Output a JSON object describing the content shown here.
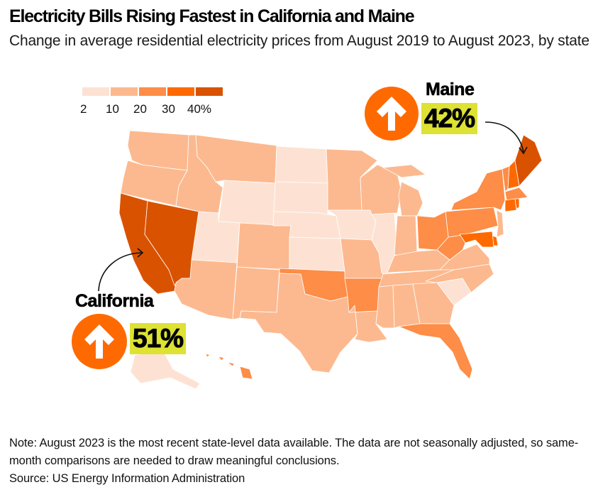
{
  "header": {
    "title": "Electricity Bills Rising Fastest in California and Maine",
    "subtitle": "Change in average residential electricity prices from August 2019 to August 2023, by state"
  },
  "legend": {
    "labels": [
      "2",
      "10",
      "20",
      "30",
      "40%"
    ],
    "colors": [
      "#fde2d3",
      "#fcb98f",
      "#fd8d47",
      "#fe6a00",
      "#d95200"
    ]
  },
  "callouts": {
    "maine": {
      "name": "Maine",
      "value": "42%",
      "direction": "up-arrow-icon"
    },
    "california": {
      "name": "California",
      "value": "51%",
      "direction": "up-arrow-icon"
    }
  },
  "colors": {
    "accent_circle": "#fe6a00",
    "highlight_box": "#dde233"
  },
  "chart_data": {
    "type": "choropleth",
    "title": "Electricity Bills Rising Fastest in California and Maine",
    "subtitle": "Change in average residential electricity prices from August 2019 to August 2023, by state",
    "legend": {
      "bins": [
        {
          "range": [
            2,
            10
          ],
          "label": "2–10%",
          "color": "#fde2d3"
        },
        {
          "range": [
            10,
            20
          ],
          "label": "10–20%",
          "color": "#fcb98f"
        },
        {
          "range": [
            20,
            30
          ],
          "label": "20–30%",
          "color": "#fd8d47"
        },
        {
          "range": [
            30,
            40
          ],
          "label": "30–40%",
          "color": "#fe6a00"
        },
        {
          "range": [
            40,
            null
          ],
          "label": "40%+",
          "color": "#d95200"
        }
      ],
      "tick_labels": [
        "2",
        "10",
        "20",
        "30",
        "40%"
      ],
      "placement": "top-left"
    },
    "annotations": [
      {
        "state": "ME",
        "label": "Maine",
        "value_pct": 42
      },
      {
        "state": "CA",
        "label": "California",
        "value_pct": 51
      }
    ],
    "states_bin": {
      "WA": 1,
      "OR": 1,
      "CA": 4,
      "NV": 4,
      "ID": 1,
      "MT": 1,
      "WY": 0,
      "UT": 0,
      "AZ": 1,
      "CO": 1,
      "NM": 1,
      "ND": 0,
      "SD": 0,
      "NE": 0,
      "KS": 0,
      "OK": 2,
      "TX": 1,
      "MN": 1,
      "IA": 0,
      "MO": 1,
      "AR": 2,
      "LA": 1,
      "WI": 1,
      "IL": 0,
      "MI": 1,
      "IN": 1,
      "OH": 2,
      "KY": 1,
      "TN": 1,
      "MS": 1,
      "AL": 1,
      "GA": 1,
      "FL": 2,
      "SC": 0,
      "NC": 1,
      "VA": 1,
      "WV": 2,
      "PA": 2,
      "NY": 2,
      "NJ": 1,
      "DE": 3,
      "MD": 3,
      "VT": 2,
      "NH": 3,
      "ME": 4,
      "MA": 2,
      "CT": 3,
      "RI": 3,
      "AK": 0,
      "HI": 2
    }
  },
  "footer": {
    "note": "Note: August 2023 is the most recent state-level data available. The data are not seasonally adjusted, so same-month comparisons are needed to draw meaningful conclusions.",
    "source": "Source: US Energy Information Administration"
  }
}
